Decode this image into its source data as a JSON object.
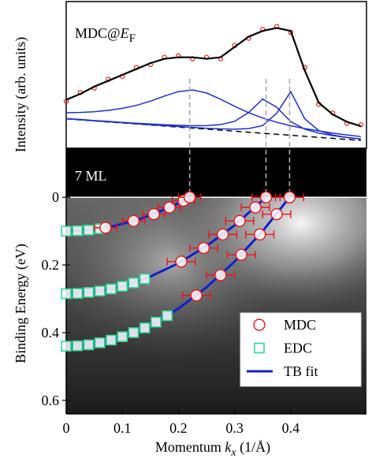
{
  "chart_data": [
    {
      "type": "line",
      "annotation": [
        "MDC@",
        "E",
        "F"
      ],
      "y_label": "Intensity (arb. units)",
      "xlim": [
        0,
        0.535
      ],
      "ylim": [
        0,
        1
      ],
      "x": [
        0,
        0.025,
        0.05,
        0.075,
        0.1,
        0.125,
        0.15,
        0.175,
        0.2,
        0.225,
        0.25,
        0.275,
        0.3,
        0.325,
        0.35,
        0.375,
        0.4,
        0.425,
        0.45,
        0.475,
        0.5,
        0.525
      ],
      "series": [
        {
          "color": "#000000",
          "dashed": true,
          "values": [
            0.2,
            0.193,
            0.186,
            0.179,
            0.172,
            0.165,
            0.158,
            0.151,
            0.144,
            0.137,
            0.13,
            0.123,
            0.116,
            0.109,
            0.102,
            0.095,
            0.088,
            0.081,
            0.074,
            0.067,
            0.06,
            0.053
          ]
        },
        {
          "color": "#1c2fd0",
          "values": [
            0.242,
            0.244,
            0.249,
            0.258,
            0.272,
            0.292,
            0.321,
            0.356,
            0.386,
            0.397,
            0.377,
            0.334,
            0.286,
            0.242,
            0.206,
            0.177,
            0.153,
            0.134,
            0.118,
            0.103,
            0.091,
            0.079
          ]
        },
        {
          "color": "#1c2fd0",
          "values": [
            0.202,
            0.196,
            0.189,
            0.183,
            0.176,
            0.17,
            0.165,
            0.16,
            0.156,
            0.153,
            0.154,
            0.161,
            0.183,
            0.243,
            0.335,
            0.28,
            0.181,
            0.13,
            0.103,
            0.086,
            0.073,
            0.063
          ]
        },
        {
          "color": "#1c2fd0",
          "values": [
            0.201,
            0.194,
            0.187,
            0.18,
            0.174,
            0.167,
            0.16,
            0.154,
            0.148,
            0.142,
            0.136,
            0.132,
            0.13,
            0.134,
            0.154,
            0.238,
            0.386,
            0.201,
            0.12,
            0.09,
            0.073,
            0.062
          ]
        },
        {
          "color": "#e0201b",
          "marker": "circle",
          "values": [
            0.32,
            0.38,
            0.41,
            0.47,
            0.49,
            0.55,
            0.57,
            0.62,
            0.63,
            0.61,
            0.62,
            0.61,
            0.7,
            0.75,
            0.81,
            0.83,
            0.79,
            0.55,
            0.3,
            0.24,
            0.17,
            0.16
          ]
        },
        {
          "color": "#000000",
          "values": [
            0.33,
            0.37,
            0.42,
            0.46,
            0.5,
            0.54,
            0.58,
            0.61,
            0.62,
            0.62,
            0.61,
            0.62,
            0.69,
            0.76,
            0.8,
            0.82,
            0.8,
            0.53,
            0.31,
            0.23,
            0.18,
            0.15
          ]
        }
      ]
    },
    {
      "type": "scatter",
      "annotation": "7 ML",
      "y_label": "Binding Energy (eV)",
      "x_label": [
        "Momentum ",
        "k",
        "x",
        " (1/Å)"
      ],
      "xlim": [
        0,
        0.535
      ],
      "ylim": [
        0.64,
        -0.145
      ],
      "xticks": [
        0,
        0.1,
        0.2,
        0.3,
        0.4
      ],
      "yticks": [
        0,
        0.2,
        0.4,
        0.6
      ],
      "reference_lines_x": [
        0.22,
        0.356,
        0.398
      ],
      "series": [
        {
          "name": "MDC",
          "color": "#e8141b",
          "marker": "circle",
          "bands": [
            {
              "x": [
                0.07,
                0.12,
                0.156,
                0.184,
                0.209,
                0.22
              ],
              "values": [
                0.09,
                0.07,
                0.05,
                0.03,
                0.01,
                0
              ],
              "errors": [
                0.02,
                0.02,
                0.02,
                0.02,
                0.02,
                0.02
              ]
            },
            {
              "x": [
                0.205,
                0.245,
                0.279,
                0.309,
                0.337,
                0.356
              ],
              "values": [
                0.19,
                0.15,
                0.11,
                0.07,
                0.03,
                0
              ],
              "errors": [
                0.025,
                0.025,
                0.025,
                0.025,
                0.025,
                0.025
              ]
            },
            {
              "x": [
                0.232,
                0.275,
                0.312,
                0.345,
                0.375,
                0.398
              ],
              "values": [
                0.29,
                0.23,
                0.17,
                0.11,
                0.05,
                0
              ],
              "errors": [
                0.025,
                0.025,
                0.025,
                0.025,
                0.025,
                0.025
              ]
            }
          ]
        },
        {
          "name": "EDC",
          "color": "#2fd99a",
          "marker": "square",
          "bands": [
            {
              "x": [
                0,
                0.02,
                0.04,
                0.06
              ],
              "values": [
                0.1,
                0.099,
                0.097,
                0.093
              ]
            },
            {
              "x": [
                0,
                0.02,
                0.04,
                0.06,
                0.08,
                0.1,
                0.12,
                0.14
              ],
              "values": [
                0.285,
                0.284,
                0.281,
                0.277,
                0.271,
                0.263,
                0.253,
                0.241
              ]
            },
            {
              "x": [
                0,
                0.02,
                0.04,
                0.06,
                0.08,
                0.1,
                0.12,
                0.14,
                0.16,
                0.18
              ],
              "values": [
                0.44,
                0.439,
                0.436,
                0.43,
                0.422,
                0.412,
                0.4,
                0.386,
                0.369,
                0.35
              ]
            }
          ]
        },
        {
          "name": "TB fit",
          "color": "#1020d0",
          "marker": "line",
          "bands": [
            {
              "x": [
                0,
                0.04,
                0.08,
                0.12,
                0.16,
                0.2,
                0.22
              ],
              "values": [
                0.1,
                0.0967,
                0.0868,
                0.0702,
                0.0471,
                0.0174,
                0
              ]
            },
            {
              "x": [
                0,
                0.05,
                0.1,
                0.15,
                0.2,
                0.25,
                0.3,
                0.356
              ],
              "values": [
                0.285,
                0.279,
                0.263,
                0.234,
                0.195,
                0.144,
                0.083,
                0
              ]
            },
            {
              "x": [
                0,
                0.05,
                0.1,
                0.15,
                0.2,
                0.25,
                0.3,
                0.35,
                0.398
              ],
              "values": [
                0.44,
                0.433,
                0.412,
                0.378,
                0.329,
                0.266,
                0.19,
                0.1,
                0
              ]
            }
          ]
        }
      ]
    }
  ]
}
